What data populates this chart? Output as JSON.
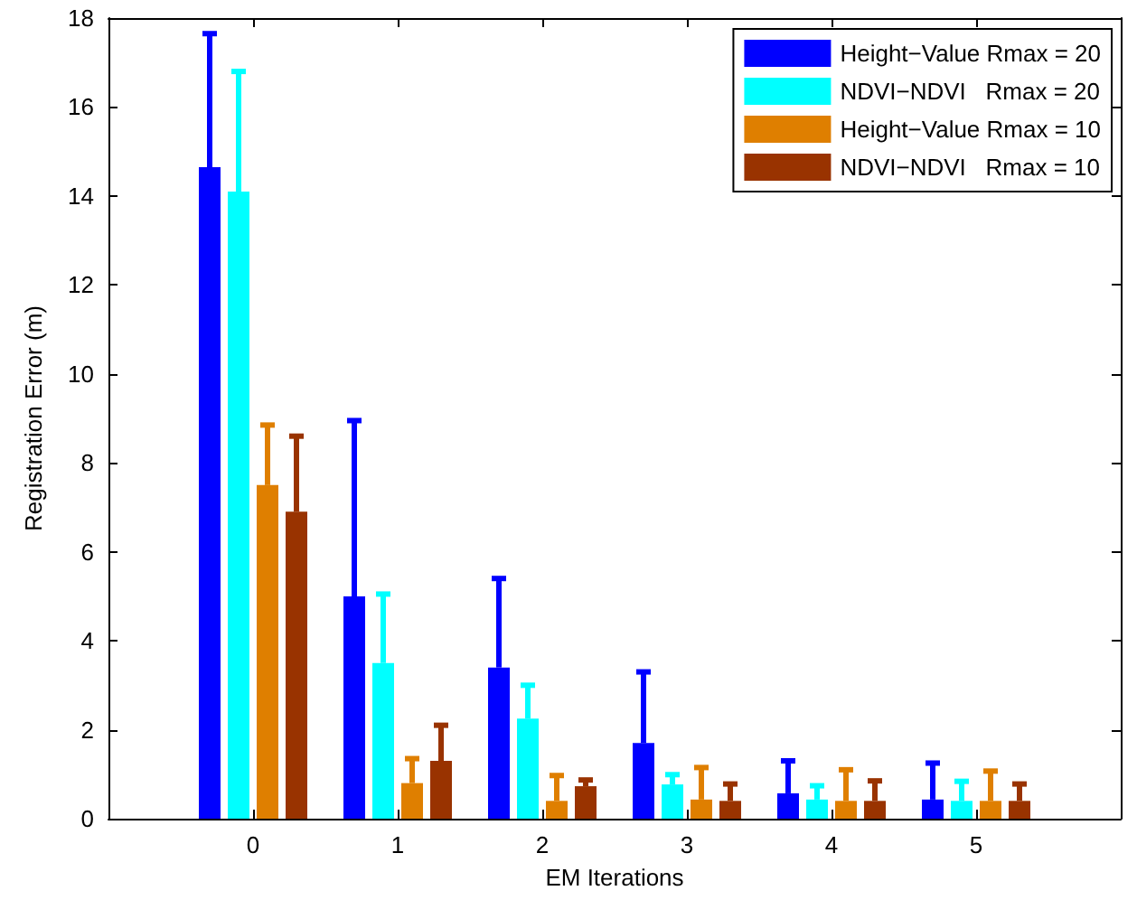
{
  "chart_data": {
    "type": "bar",
    "xlabel": "EM Iterations",
    "ylabel": "Registration Error (m)",
    "x": [
      0,
      1,
      2,
      3,
      4,
      5
    ],
    "xlim": [
      -1,
      6
    ],
    "xticks": [
      0,
      1,
      2,
      3,
      4,
      5
    ],
    "ylim": [
      0,
      18
    ],
    "yticks": [
      0,
      2,
      4,
      6,
      8,
      10,
      12,
      14,
      16,
      18
    ],
    "grid": false,
    "legend": "top right",
    "series": [
      {
        "name": "Height−Value Rmax = 20",
        "color": "#0000ff",
        "values": [
          14.65,
          5.0,
          3.4,
          1.7,
          0.57,
          0.43
        ],
        "errors": [
          [
            14.65,
            17.65
          ],
          [
            5.0,
            8.95
          ],
          [
            3.4,
            5.4
          ],
          [
            1.7,
            3.3
          ],
          [
            0.57,
            1.3
          ],
          [
            0.43,
            1.25
          ]
        ]
      },
      {
        "name": "NDVI−NDVI   Rmax = 20",
        "color": "#00ffff",
        "values": [
          14.1,
          3.5,
          2.25,
          0.77,
          0.43,
          0.4
        ],
        "errors": [
          [
            14.1,
            16.8
          ],
          [
            3.5,
            5.05
          ],
          [
            2.25,
            3.0
          ],
          [
            0.77,
            0.99
          ],
          [
            0.43,
            0.74
          ],
          [
            0.4,
            0.84
          ]
        ]
      },
      {
        "name": "Height−Value Rmax = 10",
        "color": "#df7f00",
        "values": [
          7.5,
          0.8,
          0.4,
          0.43,
          0.4,
          0.4
        ],
        "errors": [
          [
            7.5,
            8.85
          ],
          [
            0.8,
            1.35
          ],
          [
            0.4,
            0.97
          ],
          [
            0.43,
            1.15
          ],
          [
            0.4,
            1.1
          ],
          [
            0.4,
            1.07
          ]
        ]
      },
      {
        "name": "NDVI−NDVI   Rmax = 10",
        "color": "#993300",
        "values": [
          6.9,
          1.3,
          0.73,
          0.4,
          0.4,
          0.4
        ],
        "errors": [
          [
            6.9,
            8.6
          ],
          [
            1.3,
            2.1
          ],
          [
            0.73,
            0.87
          ],
          [
            0.4,
            0.78
          ],
          [
            0.4,
            0.85
          ],
          [
            0.4,
            0.78
          ]
        ]
      }
    ]
  }
}
